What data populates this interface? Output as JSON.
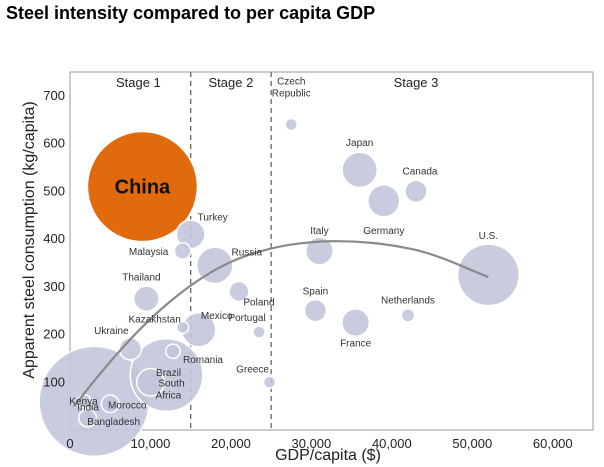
{
  "chart_data": {
    "type": "scatter",
    "title": "Steel intensity compared to per capita GDP",
    "xlabel": "GDP/capita ($)",
    "ylabel": "Apparent steel consumption (kg/capita)",
    "xlim": [
      0,
      65000
    ],
    "ylim": [
      0,
      750
    ],
    "x_ticks": [
      0,
      10000,
      20000,
      30000,
      40000,
      50000,
      60000
    ],
    "x_tick_labels": [
      "0",
      "10,000",
      "20,000",
      "30,000",
      "40,000",
      "50,000",
      "60,000"
    ],
    "y_ticks": [
      100,
      200,
      300,
      400,
      500,
      600,
      700
    ],
    "y_tick_labels": [
      "100",
      "200",
      "300",
      "400",
      "500",
      "600",
      "700"
    ],
    "grid": false,
    "stage_boundaries": [
      15000,
      25000
    ],
    "stages": [
      {
        "label": "Stage 1",
        "x": 8500
      },
      {
        "label": "Stage 2",
        "x": 20000
      },
      {
        "label": "Stage 3",
        "x": 43000
      }
    ],
    "colors": {
      "bubble": "#c3c7dc",
      "bubble_edge": "#ffffff",
      "highlight": "#e06a0c",
      "curve": "#8a8a8a",
      "divider": "#666666"
    },
    "points": [
      {
        "name": "China",
        "x": 9000,
        "y": 510,
        "size": 100,
        "highlight": true
      },
      {
        "name": "India",
        "x": 3000,
        "y": 60,
        "size": 100
      },
      {
        "name": "Brazil",
        "x": 12000,
        "y": 115,
        "size": 66
      },
      {
        "name": "Czech Republic",
        "x": 27500,
        "y": 640,
        "size": 11
      },
      {
        "name": "Japan",
        "x": 36000,
        "y": 545,
        "size": 32
      },
      {
        "name": "Canada",
        "x": 43000,
        "y": 500,
        "size": 20
      },
      {
        "name": "Germany",
        "x": 39000,
        "y": 480,
        "size": 29
      },
      {
        "name": "Turkey",
        "x": 15000,
        "y": 410,
        "size": 26
      },
      {
        "name": "Malaysia",
        "x": 14000,
        "y": 375,
        "size": 15
      },
      {
        "name": "Russia",
        "x": 18000,
        "y": 345,
        "size": 33
      },
      {
        "name": "Italy",
        "x": 31000,
        "y": 375,
        "size": 25
      },
      {
        "name": "U.S.",
        "x": 52000,
        "y": 325,
        "size": 56
      },
      {
        "name": "Thailand",
        "x": 9500,
        "y": 275,
        "size": 23
      },
      {
        "name": "Poland",
        "x": 21000,
        "y": 290,
        "size": 18
      },
      {
        "name": "Spain",
        "x": 30500,
        "y": 250,
        "size": 20
      },
      {
        "name": "Netherlands",
        "x": 42000,
        "y": 240,
        "size": 12
      },
      {
        "name": "Kazakhstan",
        "x": 14000,
        "y": 215,
        "size": 11
      },
      {
        "name": "Mexico",
        "x": 16000,
        "y": 210,
        "size": 31
      },
      {
        "name": "Portugal",
        "x": 23500,
        "y": 205,
        "size": 11
      },
      {
        "name": "France",
        "x": 35500,
        "y": 225,
        "size": 25
      },
      {
        "name": "Ukraine",
        "x": 7500,
        "y": 170,
        "size": 20
      },
      {
        "name": "Romania",
        "x": 12800,
        "y": 165,
        "size": 13
      },
      {
        "name": "South Africa",
        "x": 10000,
        "y": 100,
        "size": 25
      },
      {
        "name": "Greece",
        "x": 24800,
        "y": 100,
        "size": 11
      },
      {
        "name": "Kenya",
        "x": 1800,
        "y": 60,
        "size": 12
      },
      {
        "name": "Morocco",
        "x": 5000,
        "y": 55,
        "size": 16
      },
      {
        "name": "Bangladesh",
        "x": 2200,
        "y": 25,
        "size": 16
      }
    ],
    "trend": [
      [
        500,
        50
      ],
      [
        5000,
        145
      ],
      [
        10000,
        235
      ],
      [
        15000,
        305
      ],
      [
        20000,
        355
      ],
      [
        25000,
        382
      ],
      [
        30000,
        395
      ],
      [
        35000,
        396
      ],
      [
        40000,
        388
      ],
      [
        45000,
        370
      ],
      [
        52000,
        320
      ]
    ]
  }
}
